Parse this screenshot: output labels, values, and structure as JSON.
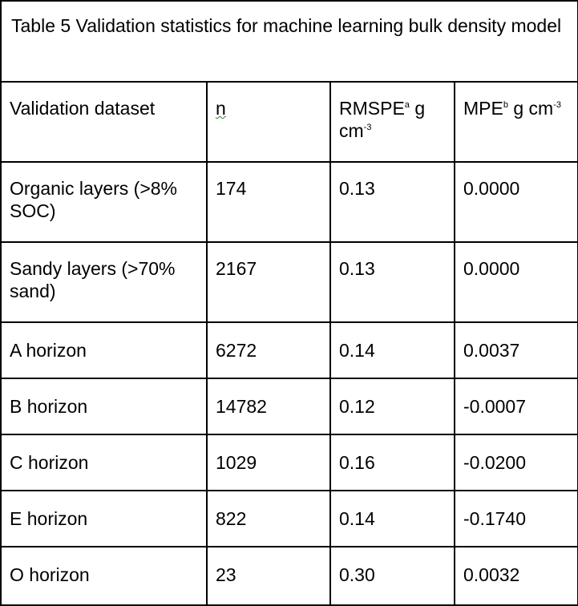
{
  "caption": "Table 5 Validation statistics for machine learning bulk density model",
  "columns": {
    "dataset": "Validation dataset",
    "n": "n",
    "rmspe": {
      "label": "RMSPE",
      "footnote": "a",
      "unit_prefix": "g cm",
      "exponent": "-3"
    },
    "mpe": {
      "label": "MPE",
      "footnote": "b",
      "unit_prefix": "g cm",
      "exponent": "-3"
    }
  },
  "rows": [
    {
      "dataset": "Organic layers (>8% SOC)",
      "n": "174",
      "rmspe": "0.13",
      "mpe": "0.0000"
    },
    {
      "dataset": "Sandy layers (>70% sand)",
      "n": "2167",
      "rmspe": "0.13",
      "mpe": "0.0000"
    },
    {
      "dataset": "A horizon",
      "n": "6272",
      "rmspe": "0.14",
      "mpe": "0.0037"
    },
    {
      "dataset": "B horizon",
      "n": "14782",
      "rmspe": "0.12",
      "mpe": "-0.0007"
    },
    {
      "dataset": "C horizon",
      "n": "1029",
      "rmspe": "0.16",
      "mpe": "-0.0200"
    },
    {
      "dataset": "E horizon",
      "n": "822",
      "rmspe": "0.14",
      "mpe": "-0.1740"
    },
    {
      "dataset": "O horizon",
      "n": "23",
      "rmspe": "0.30",
      "mpe": "0.0032"
    }
  ]
}
